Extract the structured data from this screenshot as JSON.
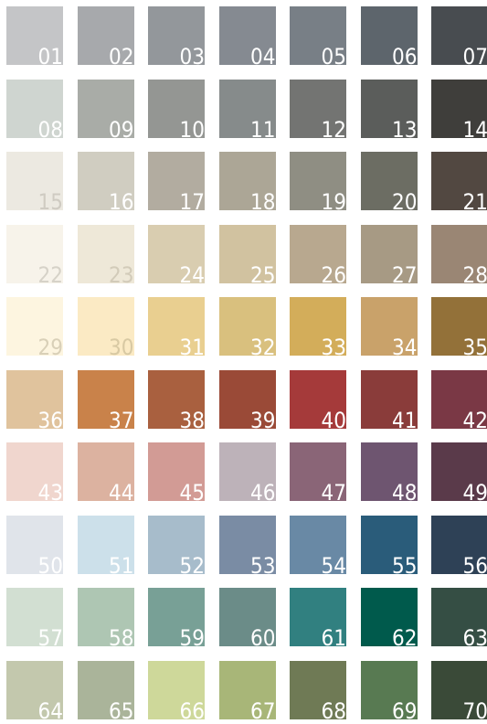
{
  "palette": {
    "swatches": [
      {
        "number": "01",
        "color": "#c4c5c7",
        "label_color": "#ffffff"
      },
      {
        "number": "02",
        "color": "#a7a9ac",
        "label_color": "#ffffff"
      },
      {
        "number": "03",
        "color": "#93979b",
        "label_color": "#ffffff"
      },
      {
        "number": "04",
        "color": "#858a91",
        "label_color": "#ffffff"
      },
      {
        "number": "05",
        "color": "#787f86",
        "label_color": "#ffffff"
      },
      {
        "number": "06",
        "color": "#5d656c",
        "label_color": "#ffffff"
      },
      {
        "number": "07",
        "color": "#484c50",
        "label_color": "#ffffff"
      },
      {
        "number": "08",
        "color": "#cfd5d0",
        "label_color": "#ffffff"
      },
      {
        "number": "09",
        "color": "#a9aca7",
        "label_color": "#ffffff"
      },
      {
        "number": "10",
        "color": "#949693",
        "label_color": "#ffffff"
      },
      {
        "number": "11",
        "color": "#868b8b",
        "label_color": "#ffffff"
      },
      {
        "number": "12",
        "color": "#737472",
        "label_color": "#ffffff"
      },
      {
        "number": "13",
        "color": "#5b5d5b",
        "label_color": "#ffffff"
      },
      {
        "number": "14",
        "color": "#3f3e3b",
        "label_color": "#ffffff"
      },
      {
        "number": "15",
        "color": "#ece9e1",
        "label_color": "#cfcbc2"
      },
      {
        "number": "16",
        "color": "#d0cdc1",
        "label_color": "#ffffff"
      },
      {
        "number": "17",
        "color": "#b2aca0",
        "label_color": "#ffffff"
      },
      {
        "number": "18",
        "color": "#aca696",
        "label_color": "#ffffff"
      },
      {
        "number": "19",
        "color": "#8f8e83",
        "label_color": "#ffffff"
      },
      {
        "number": "20",
        "color": "#6c6d63",
        "label_color": "#ffffff"
      },
      {
        "number": "21",
        "color": "#524841",
        "label_color": "#ffffff"
      },
      {
        "number": "22",
        "color": "#f7f3ea",
        "label_color": "#d6d2c8"
      },
      {
        "number": "23",
        "color": "#eee8d8",
        "label_color": "#d2cbb9"
      },
      {
        "number": "24",
        "color": "#d9cdb0",
        "label_color": "#ffffff"
      },
      {
        "number": "25",
        "color": "#d1c2a0",
        "label_color": "#ffffff"
      },
      {
        "number": "26",
        "color": "#b8a88f",
        "label_color": "#ffffff"
      },
      {
        "number": "27",
        "color": "#a79a84",
        "label_color": "#ffffff"
      },
      {
        "number": "28",
        "color": "#9a8674",
        "label_color": "#ffffff"
      },
      {
        "number": "29",
        "color": "#fdf5e0",
        "label_color": "#d9d0b8"
      },
      {
        "number": "30",
        "color": "#fbeac4",
        "label_color": "#d8c9a3"
      },
      {
        "number": "31",
        "color": "#e9cf90",
        "label_color": "#ffffff"
      },
      {
        "number": "32",
        "color": "#d9c07e",
        "label_color": "#ffffff"
      },
      {
        "number": "33",
        "color": "#d3ad5a",
        "label_color": "#ffffff"
      },
      {
        "number": "34",
        "color": "#c9a26a",
        "label_color": "#ffffff"
      },
      {
        "number": "35",
        "color": "#937139",
        "label_color": "#ffffff"
      },
      {
        "number": "36",
        "color": "#e0c39d",
        "label_color": "#ffffff"
      },
      {
        "number": "37",
        "color": "#c9824a",
        "label_color": "#ffffff"
      },
      {
        "number": "38",
        "color": "#a9603f",
        "label_color": "#ffffff"
      },
      {
        "number": "39",
        "color": "#9a4a37",
        "label_color": "#ffffff"
      },
      {
        "number": "40",
        "color": "#a53a3a",
        "label_color": "#ffffff"
      },
      {
        "number": "41",
        "color": "#8a3c3a",
        "label_color": "#ffffff"
      },
      {
        "number": "42",
        "color": "#7a3845",
        "label_color": "#ffffff"
      },
      {
        "number": "43",
        "color": "#f0d6ce",
        "label_color": "#ffffff"
      },
      {
        "number": "44",
        "color": "#dcb2a0",
        "label_color": "#ffffff"
      },
      {
        "number": "45",
        "color": "#d29b95",
        "label_color": "#ffffff"
      },
      {
        "number": "46",
        "color": "#bdb2b9",
        "label_color": "#ffffff"
      },
      {
        "number": "47",
        "color": "#8a6577",
        "label_color": "#ffffff"
      },
      {
        "number": "48",
        "color": "#6e5570",
        "label_color": "#ffffff"
      },
      {
        "number": "49",
        "color": "#5a3a4a",
        "label_color": "#ffffff"
      },
      {
        "number": "50",
        "color": "#e0e4ea",
        "label_color": "#ffffff"
      },
      {
        "number": "51",
        "color": "#cce0ea",
        "label_color": "#ffffff"
      },
      {
        "number": "52",
        "color": "#a7bccb",
        "label_color": "#ffffff"
      },
      {
        "number": "53",
        "color": "#7a8ca4",
        "label_color": "#ffffff"
      },
      {
        "number": "54",
        "color": "#6989a5",
        "label_color": "#ffffff"
      },
      {
        "number": "55",
        "color": "#2a5c7a",
        "label_color": "#ffffff"
      },
      {
        "number": "56",
        "color": "#2e4156",
        "label_color": "#ffffff"
      },
      {
        "number": "57",
        "color": "#d2dfd2",
        "label_color": "#ffffff"
      },
      {
        "number": "58",
        "color": "#aec6b3",
        "label_color": "#ffffff"
      },
      {
        "number": "59",
        "color": "#78a096",
        "label_color": "#ffffff"
      },
      {
        "number": "60",
        "color": "#6b8c88",
        "label_color": "#ffffff"
      },
      {
        "number": "61",
        "color": "#318080",
        "label_color": "#ffffff"
      },
      {
        "number": "62",
        "color": "#005a4c",
        "label_color": "#ffffff"
      },
      {
        "number": "63",
        "color": "#354e44",
        "label_color": "#ffffff"
      },
      {
        "number": "64",
        "color": "#c3c8ad",
        "label_color": "#ffffff"
      },
      {
        "number": "65",
        "color": "#aab49a",
        "label_color": "#ffffff"
      },
      {
        "number": "66",
        "color": "#ced89a",
        "label_color": "#ffffff"
      },
      {
        "number": "67",
        "color": "#a8b678",
        "label_color": "#ffffff"
      },
      {
        "number": "68",
        "color": "#6f7a55",
        "label_color": "#ffffff"
      },
      {
        "number": "69",
        "color": "#587a52",
        "label_color": "#ffffff"
      },
      {
        "number": "70",
        "color": "#3a4a38",
        "label_color": "#ffffff"
      }
    ]
  }
}
